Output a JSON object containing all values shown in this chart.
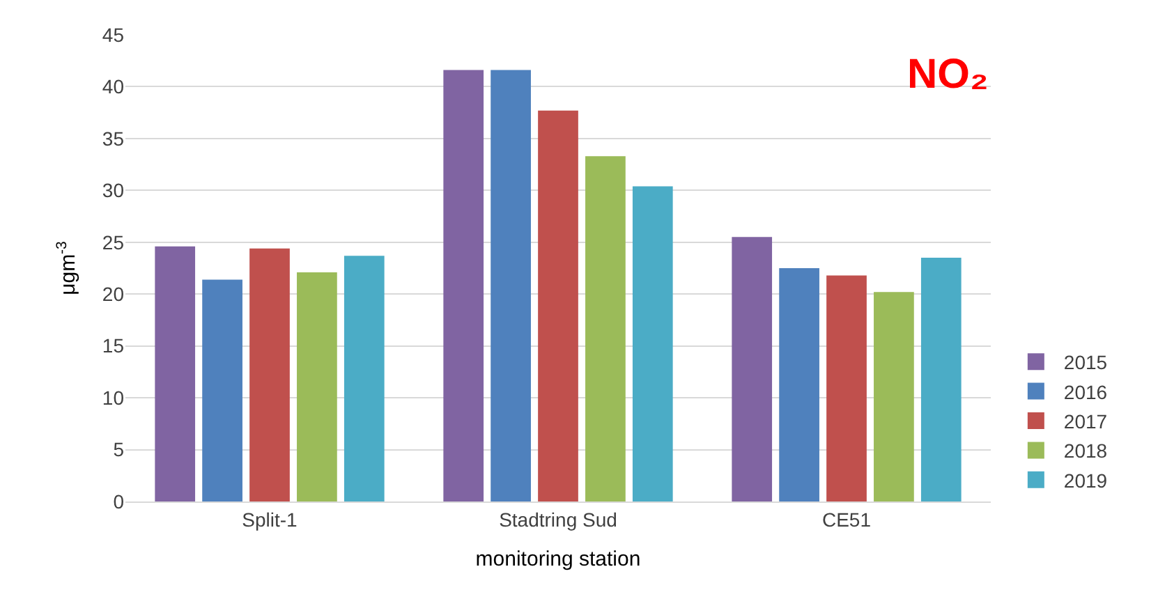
{
  "chart_data": {
    "type": "bar",
    "title": "NO₂",
    "xlabel": "monitoring station",
    "ylabel": "μgm$^{-3}$",
    "categories": [
      "Split-1",
      "Stadtring Sud",
      "CE51"
    ],
    "series": [
      {
        "name": "2015",
        "color": "#8064a2",
        "values": [
          24.6,
          41.6,
          25.5
        ]
      },
      {
        "name": "2016",
        "color": "#4f81bd",
        "values": [
          21.4,
          41.6,
          22.5
        ]
      },
      {
        "name": "2017",
        "color": "#c0504d",
        "values": [
          24.4,
          37.7,
          21.8
        ]
      },
      {
        "name": "2018",
        "color": "#9bbb59",
        "values": [
          22.1,
          33.3,
          20.2
        ]
      },
      {
        "name": "2019",
        "color": "#4bacc6",
        "values": [
          23.7,
          30.4,
          23.5
        ]
      }
    ],
    "ylim": [
      0,
      45
    ],
    "yticks": [
      0,
      5,
      10,
      15,
      20,
      25,
      30,
      35,
      40,
      45
    ],
    "grid": "y",
    "legend": "right"
  }
}
